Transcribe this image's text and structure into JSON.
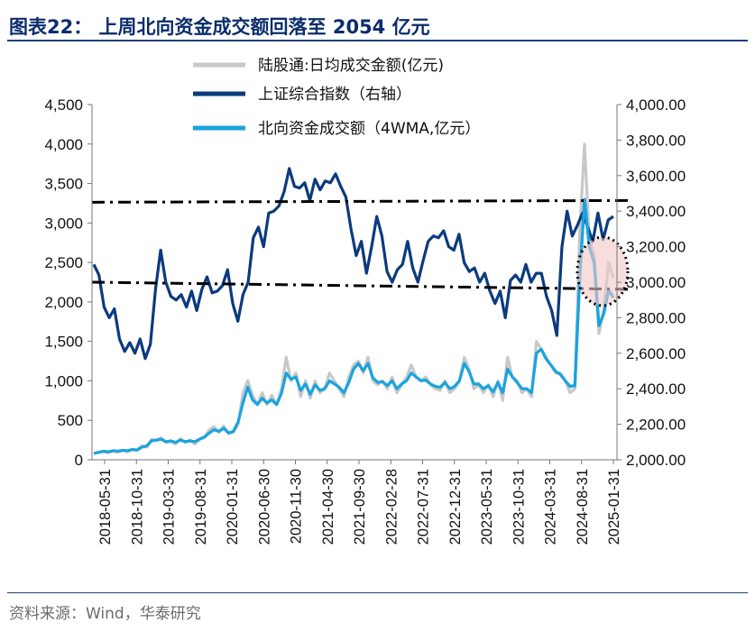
{
  "header": {
    "title": "图表22： 上周北向资金成交额回落至 2054 亿元"
  },
  "footer": {
    "source": "资料来源：Wind，华泰研究"
  },
  "colors": {
    "daily": "#c8c8c8",
    "index": "#0b3a7e",
    "wma": "#1aa3e0",
    "ellipse_fill": "#f2c6c8",
    "title": "#0b2d6b"
  },
  "chart_data": {
    "type": "line",
    "x_axis_labels": [
      "2018-05-31",
      "2018-10-31",
      "2019-03-31",
      "2019-08-31",
      "2020-01-31",
      "2020-06-30",
      "2020-11-30",
      "2021-04-30",
      "2021-09-30",
      "2022-02-28",
      "2022-07-31",
      "2022-12-31",
      "2023-05-31",
      "2023-10-31",
      "2024-03-31",
      "2024-08-31",
      "2025-01-31"
    ],
    "y_left_ticks": [
      "0",
      "500",
      "1,000",
      "1,500",
      "2,000",
      "2,500",
      "3,000",
      "3,500",
      "4,000",
      "4,500"
    ],
    "y_left_range": [
      0,
      4500
    ],
    "y_right_ticks": [
      "2,000.00",
      "2,200.00",
      "2,400.00",
      "2,600.00",
      "2,800.00",
      "3,000.00",
      "3,200.00",
      "3,400.00",
      "3,600.00",
      "3,800.00",
      "4,000.00"
    ],
    "y_right_range": [
      2000,
      4000
    ],
    "series": [
      {
        "name": "陆股通:日均成交金额(亿元)",
        "axis": "left",
        "values": [
          80,
          95,
          100,
          90,
          110,
          95,
          120,
          100,
          130,
          120,
          180,
          160,
          260,
          240,
          280,
          220,
          230,
          200,
          270,
          220,
          250,
          200,
          260,
          280,
          380,
          420,
          350,
          430,
          330,
          350,
          450,
          850,
          1000,
          820,
          700,
          850,
          700,
          820,
          700,
          900,
          1300,
          1000,
          1100,
          800,
          1000,
          780,
          1000,
          850,
          900,
          1100,
          1000,
          900,
          800,
          1050,
          1200,
          1250,
          1100,
          1300,
          1000,
          950,
          1000,
          900,
          1050,
          850,
          950,
          1050,
          1200,
          1050,
          1000,
          1050,
          950,
          900,
          880,
          1000,
          850,
          900,
          1000,
          1300,
          1150,
          900,
          950,
          850,
          950,
          800,
          1000,
          750,
          1300,
          1050,
          1000,
          850,
          900,
          800,
          1500,
          1400,
          1300,
          1200,
          1100,
          1100,
          1000,
          850,
          900,
          2900,
          4000,
          2800,
          2600,
          1600,
          1900,
          2500,
          2300
        ]
      },
      {
        "name": "上证综合指数（右轴）",
        "axis": "right",
        "values": [
          3100,
          3040,
          2860,
          2800,
          2850,
          2680,
          2610,
          2660,
          2600,
          2680,
          2570,
          2650,
          2960,
          3180,
          3000,
          2920,
          2900,
          2930,
          2860,
          2950,
          2840,
          2960,
          3030,
          2940,
          2950,
          2980,
          3070,
          2880,
          2780,
          2930,
          3000,
          3250,
          3310,
          3200,
          3390,
          3400,
          3430,
          3510,
          3640,
          3540,
          3530,
          3560,
          3460,
          3580,
          3520,
          3570,
          3560,
          3610,
          3540,
          3480,
          3300,
          3150,
          3230,
          3050,
          3200,
          3370,
          3260,
          3060,
          3000,
          3070,
          3100,
          3230,
          3080,
          3000,
          3120,
          3230,
          3260,
          3250,
          3290,
          3200,
          3180,
          3270,
          3110,
          3060,
          3080,
          3000,
          3050,
          2950,
          2880,
          2950,
          2800,
          3010,
          3040,
          3000,
          3100,
          3000,
          3050,
          3050,
          2920,
          2840,
          2700,
          3200,
          3400,
          3260,
          3320,
          3390,
          3310,
          3230,
          3390,
          3240,
          3350,
          3370
        ]
      },
      {
        "name": "北向资金成交额（4WMA,亿元）",
        "axis": "left",
        "values": [
          80,
          95,
          110,
          100,
          115,
          110,
          120,
          115,
          130,
          125,
          160,
          175,
          240,
          250,
          260,
          230,
          240,
          220,
          250,
          230,
          240,
          230,
          260,
          290,
          340,
          380,
          360,
          400,
          340,
          360,
          480,
          720,
          920,
          760,
          700,
          780,
          720,
          760,
          700,
          840,
          1100,
          1020,
          1050,
          880,
          960,
          830,
          950,
          880,
          900,
          1000,
          960,
          920,
          850,
          980,
          1150,
          1220,
          1130,
          1220,
          1040,
          980,
          990,
          940,
          1000,
          900,
          960,
          1000,
          1100,
          1050,
          1000,
          1010,
          960,
          930,
          920,
          980,
          900,
          930,
          1000,
          1220,
          1120,
          960,
          960,
          900,
          940,
          860,
          980,
          850,
          1150,
          1050,
          980,
          900,
          900,
          850,
          1350,
          1400,
          1280,
          1200,
          1120,
          1080,
          1000,
          930,
          940,
          2300,
          3300,
          2700,
          2500,
          1700,
          1850,
          2150,
          2054
        ]
      }
    ],
    "reference_lines": [
      {
        "style": "dash-dot",
        "from_right": 3450,
        "to_right": 3460
      },
      {
        "style": "dash-dot",
        "from_right": 3000,
        "to_right": 2960
      }
    ],
    "annotation": "dotted ellipse highlighting latest period",
    "legend_position": "top-center",
    "grid": false
  }
}
